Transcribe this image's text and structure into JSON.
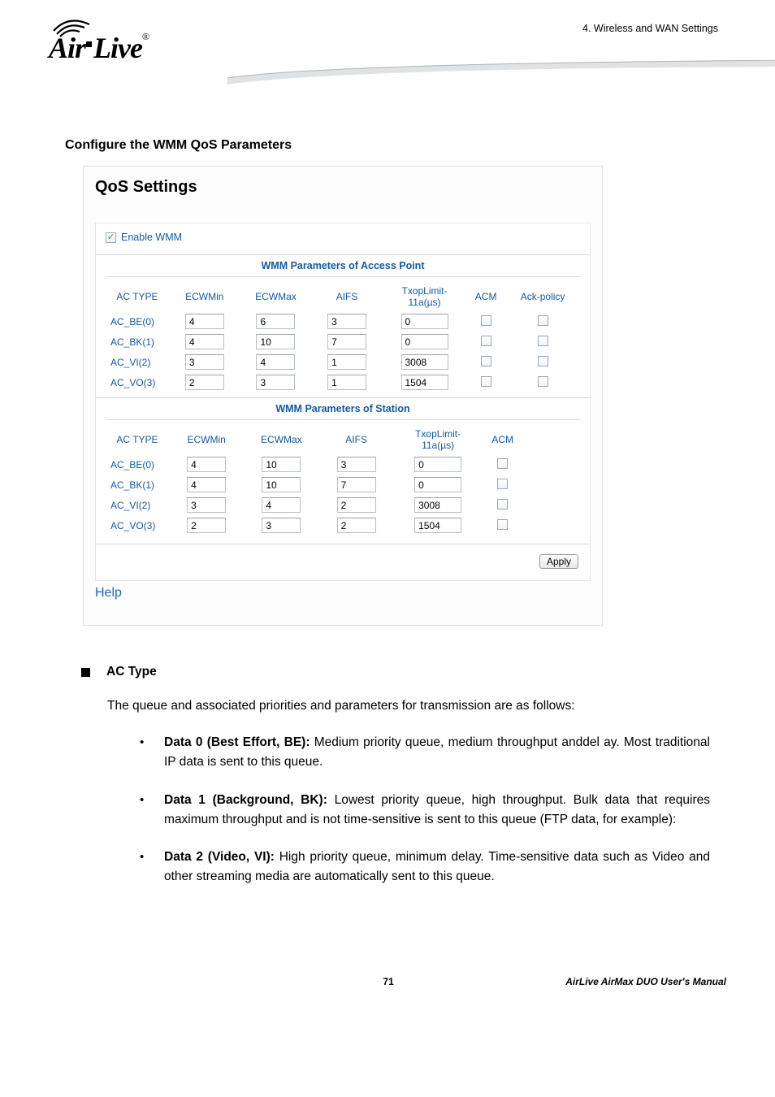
{
  "header": {
    "chapter": "4.  Wireless  and  WAN  Settings",
    "logo_main": "Air Live",
    "logo_reg": "®"
  },
  "section_title": "Configure the WMM QoS Parameters",
  "panel": {
    "title": "QoS Settings",
    "enable_label": "Enable WMM",
    "enable_checked": true,
    "ap_caption": "WMM Parameters of Access Point",
    "sta_caption": "WMM Parameters of Station",
    "headers_ap": [
      "AC TYPE",
      "ECWMin",
      "ECWMax",
      "AIFS",
      "TxopLimit-11a(µs)",
      "ACM",
      "Ack-policy"
    ],
    "headers_sta": [
      "AC TYPE",
      "ECWMin",
      "ECWMax",
      "AIFS",
      "TxopLimit-11a(µs)",
      "ACM"
    ],
    "ap_rows": [
      {
        "type": "AC_BE(0)",
        "ecwmin": "4",
        "ecwmax": "6",
        "aifs": "3",
        "txop": "0"
      },
      {
        "type": "AC_BK(1)",
        "ecwmin": "4",
        "ecwmax": "10",
        "aifs": "7",
        "txop": "0"
      },
      {
        "type": "AC_VI(2)",
        "ecwmin": "3",
        "ecwmax": "4",
        "aifs": "1",
        "txop": "3008"
      },
      {
        "type": "AC_VO(3)",
        "ecwmin": "2",
        "ecwmax": "3",
        "aifs": "1",
        "txop": "1504"
      }
    ],
    "sta_rows": [
      {
        "type": "AC_BE(0)",
        "ecwmin": "4",
        "ecwmax": "10",
        "aifs": "3",
        "txop": "0"
      },
      {
        "type": "AC_BK(1)",
        "ecwmin": "4",
        "ecwmax": "10",
        "aifs": "7",
        "txop": "0"
      },
      {
        "type": "AC_VI(2)",
        "ecwmin": "3",
        "ecwmax": "4",
        "aifs": "2",
        "txop": "3008"
      },
      {
        "type": "AC_VO(3)",
        "ecwmin": "2",
        "ecwmax": "3",
        "aifs": "2",
        "txop": "1504"
      }
    ],
    "apply_label": "Apply",
    "help_label": "Help"
  },
  "body": {
    "heading": "AC Type",
    "intro": "The queue and associated priorities and parameters for transmission are as follows:",
    "items": [
      {
        "bold": "Data 0 (Best Effort, BE):",
        "text": " Medium priority queue, medium throughput anddel ay. Most traditional IP data is sent to this queue."
      },
      {
        "bold": "Data 1 (Background, BK):",
        "text": " Lowest priority queue, high throughput. Bulk data that requires maximum throughput and is not time-sensitive is sent to this queue (FTP data, for example):"
      },
      {
        "bold": "Data 2 (Video, VI):",
        "text": " High priority queue, minimum delay. Time-sensitive data such as Video and other streaming media are automatically sent to this queue."
      }
    ]
  },
  "footer": {
    "page": "71",
    "manual": "AirLive  AirMax  DUO  User's  Manual"
  },
  "colors": {
    "link_blue": "#145aa0",
    "panel_border": "#e0e0e0",
    "input_border": "#b7bfc7"
  }
}
